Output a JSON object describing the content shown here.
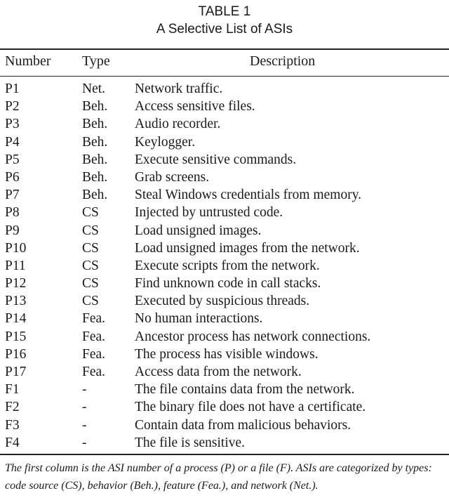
{
  "table": {
    "number_label": "TABLE 1",
    "title": "A Selective List of ASIs",
    "headers": {
      "number": "Number",
      "type": "Type",
      "description": "Description"
    },
    "rows": [
      {
        "number": "P1",
        "type": "Net.",
        "description": "Network traffic."
      },
      {
        "number": "P2",
        "type": "Beh.",
        "description": "Access sensitive files."
      },
      {
        "number": "P3",
        "type": "Beh.",
        "description": "Audio recorder."
      },
      {
        "number": "P4",
        "type": "Beh.",
        "description": "Keylogger."
      },
      {
        "number": "P5",
        "type": "Beh.",
        "description": "Execute sensitive commands."
      },
      {
        "number": "P6",
        "type": "Beh.",
        "description": "Grab screens."
      },
      {
        "number": "P7",
        "type": "Beh.",
        "description": "Steal Windows credentials from memory."
      },
      {
        "number": "P8",
        "type": "CS",
        "description": "Injected by untrusted code."
      },
      {
        "number": "P9",
        "type": "CS",
        "description": "Load unsigned images."
      },
      {
        "number": "P10",
        "type": "CS",
        "description": "Load unsigned images from the network."
      },
      {
        "number": "P11",
        "type": "CS",
        "description": "Execute scripts from the network."
      },
      {
        "number": "P12",
        "type": "CS",
        "description": "Find unknown code in call stacks."
      },
      {
        "number": "P13",
        "type": "CS",
        "description": "Executed by suspicious threads."
      },
      {
        "number": "P14",
        "type": "Fea.",
        "description": "No human interactions."
      },
      {
        "number": "P15",
        "type": "Fea.",
        "description": "Ancestor process has network connections."
      },
      {
        "number": "P16",
        "type": "Fea.",
        "description": "The process has visible windows."
      },
      {
        "number": "P17",
        "type": "Fea.",
        "description": "Access data from the network."
      },
      {
        "number": "F1",
        "type": "-",
        "description": "The file contains data from the network."
      },
      {
        "number": "F2",
        "type": "-",
        "description": "The binary file does not have a certificate."
      },
      {
        "number": "F3",
        "type": "-",
        "description": "Contain data from malicious behaviors."
      },
      {
        "number": "F4",
        "type": "-",
        "description": "The file is sensitive."
      }
    ],
    "footnote": "The first column is the ASI number of a process (P) or a file (F). ASIs are categorized by types: code source (CS), behavior (Beh.), feature (Fea.), and network (Net.)."
  }
}
